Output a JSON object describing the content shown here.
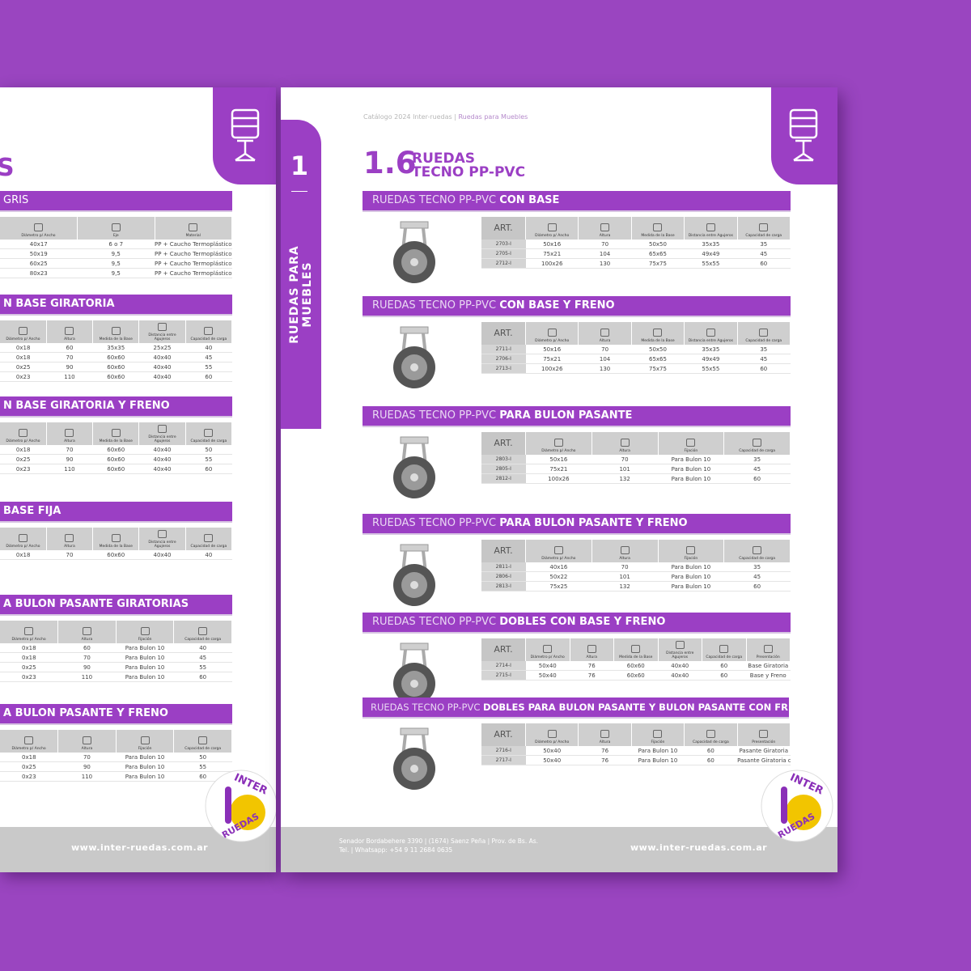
{
  "header": {
    "catalog": "Catálogo 2024 Inter-ruedas",
    "section": "Ruedas para Muebles"
  },
  "chapter": {
    "number": "1",
    "label": "RUEDAS PARA MUEBLES"
  },
  "title": {
    "number": "1.6",
    "line1": "RUEDAS",
    "line2": "TECNO PP-PVC"
  },
  "left_page": {
    "title_fragment": "S",
    "sections": [
      {
        "title": "GRIS",
        "columns": [
          "Diámetro p/ Ancho",
          "Eje",
          "Material"
        ],
        "rows": [
          [
            "40x17",
            "6 o 7",
            "PP + Caucho Termoplástico"
          ],
          [
            "50x19",
            "9,5",
            "PP + Caucho Termoplástico"
          ],
          [
            "60x25",
            "9,5",
            "PP + Caucho Termoplástico"
          ],
          [
            "80x23",
            "9,5",
            "PP + Caucho Termoplástico"
          ]
        ]
      },
      {
        "title": "N BASE GIRATORIA",
        "columns": [
          "Diámetro p/ Ancho",
          "Altura",
          "Medida de la Base",
          "Distancia entre Agujeros",
          "Capacidad de carga"
        ],
        "rows": [
          [
            "0x18",
            "60",
            "35x35",
            "25x25",
            "40"
          ],
          [
            "0x18",
            "70",
            "60x60",
            "40x40",
            "45"
          ],
          [
            "0x25",
            "90",
            "60x60",
            "40x40",
            "55"
          ],
          [
            "0x23",
            "110",
            "60x60",
            "40x40",
            "60"
          ]
        ]
      },
      {
        "title": "N BASE GIRATORIA Y FRENO",
        "columns": [
          "Diámetro p/ Ancho",
          "Altura",
          "Medida de la Base",
          "Distancia entre Agujeros",
          "Capacidad de carga"
        ],
        "rows": [
          [
            "0x18",
            "70",
            "60x60",
            "40x40",
            "50"
          ],
          [
            "0x25",
            "90",
            "60x60",
            "40x40",
            "55"
          ],
          [
            "0x23",
            "110",
            "60x60",
            "40x40",
            "60"
          ]
        ]
      },
      {
        "title": "BASE FIJA",
        "columns": [
          "Diámetro p/ Ancho",
          "Altura",
          "Medida de la Base",
          "Distancia entre Agujeros",
          "Capacidad de carga"
        ],
        "rows": [
          [
            "0x18",
            "70",
            "60x60",
            "40x40",
            "40"
          ]
        ]
      },
      {
        "title": "A BULON PASANTE GIRATORIAS",
        "columns": [
          "Diámetro p/ Ancho",
          "Altura",
          "Fijación",
          "Capacidad de carga"
        ],
        "rows": [
          [
            "0x18",
            "60",
            "Para Bulon 10",
            "40"
          ],
          [
            "0x18",
            "70",
            "Para Bulon 10",
            "45"
          ],
          [
            "0x25",
            "90",
            "Para Bulon 10",
            "55"
          ],
          [
            "0x23",
            "110",
            "Para Bulon 10",
            "60"
          ]
        ]
      },
      {
        "title": "A BULON PASANTE Y FRENO",
        "columns": [
          "Diámetro p/ Ancho",
          "Altura",
          "Fijación",
          "Capacidad de carga"
        ],
        "rows": [
          [
            "0x18",
            "70",
            "Para Bulon 10",
            "50"
          ],
          [
            "0x25",
            "90",
            "Para Bulon 10",
            "55"
          ],
          [
            "0x23",
            "110",
            "Para Bulon 10",
            "60"
          ]
        ]
      }
    ]
  },
  "sections": [
    {
      "title_prefix": "RUEDAS TECNO PP-PVC",
      "title_bold": "CON BASE",
      "columns": [
        "ART.",
        "Diámetro p/ Ancho",
        "Altura",
        "Medida de la Base",
        "Distancia entre Agujeros",
        "Capacidad de carga"
      ],
      "rows": [
        [
          "2703-I",
          "50x16",
          "70",
          "50x50",
          "35x35",
          "35"
        ],
        [
          "2705-I",
          "75x21",
          "104",
          "65x65",
          "49x49",
          "45"
        ],
        [
          "2712-I",
          "100x26",
          "130",
          "75x75",
          "55x55",
          "60"
        ]
      ]
    },
    {
      "title_prefix": "RUEDAS TECNO PP-PVC",
      "title_bold": "CON BASE Y FRENO",
      "columns": [
        "ART.",
        "Diámetro p/ Ancho",
        "Altura",
        "Medida de la Base",
        "Distancia entre Agujeros",
        "Capacidad de carga"
      ],
      "rows": [
        [
          "2711-I",
          "50x16",
          "70",
          "50x50",
          "35x35",
          "35"
        ],
        [
          "2706-I",
          "75x21",
          "104",
          "65x65",
          "49x49",
          "45"
        ],
        [
          "2713-I",
          "100x26",
          "130",
          "75x75",
          "55x55",
          "60"
        ]
      ]
    },
    {
      "title_prefix": "RUEDAS TECNO PP-PVC",
      "title_bold": "PARA BULON PASANTE",
      "columns": [
        "ART.",
        "Diámetro p/ Ancho",
        "Altura",
        "Fijación",
        "Capacidad de carga"
      ],
      "rows": [
        [
          "2803-I",
          "50x16",
          "70",
          "Para Bulon 10",
          "35"
        ],
        [
          "2805-I",
          "75x21",
          "101",
          "Para Bulon 10",
          "45"
        ],
        [
          "2812-I",
          "100x26",
          "132",
          "Para Bulon 10",
          "60"
        ]
      ]
    },
    {
      "title_prefix": "RUEDAS TECNO PP-PVC",
      "title_bold": "PARA BULON PASANTE Y FRENO",
      "columns": [
        "ART.",
        "Diámetro p/ Ancho",
        "Altura",
        "Fijación",
        "Capacidad de carga"
      ],
      "rows": [
        [
          "2811-I",
          "40x16",
          "70",
          "Para Bulon 10",
          "35"
        ],
        [
          "2806-I",
          "50x22",
          "101",
          "Para Bulon 10",
          "45"
        ],
        [
          "2813-I",
          "75x25",
          "132",
          "Para Bulon 10",
          "60"
        ]
      ]
    },
    {
      "title_prefix": "RUEDAS TECNO PP-PVC",
      "title_bold": "DOBLES CON BASE Y FRENO",
      "columns": [
        "ART.",
        "Diámetro p/ Ancho",
        "Altura",
        "Medida de la Base",
        "Distancia entre Agujeros",
        "Capacidad de carga",
        "Presentación"
      ],
      "rows": [
        [
          "2714-I",
          "50x40",
          "76",
          "60x60",
          "40x40",
          "60",
          "Base Giratoria"
        ],
        [
          "2715-I",
          "50x40",
          "76",
          "60x60",
          "40x40",
          "60",
          "Base y Freno"
        ]
      ]
    },
    {
      "title_prefix": "RUEDAS TECNO PP-PVC",
      "title_bold": "DOBLES PARA BULON PASANTE Y BULON PASANTE CON FRENO",
      "columns": [
        "ART.",
        "Diámetro p/ Ancho",
        "Altura",
        "Fijación",
        "Capacidad de carga",
        "Presentación"
      ],
      "rows": [
        [
          "2716-I",
          "50x40",
          "76",
          "Para Bulon 10",
          "60",
          "Pasante Giratoria"
        ],
        [
          "2717-I",
          "50x40",
          "76",
          "Para Bulon 10",
          "60",
          "Pasante Giratoria c/ freno"
        ]
      ]
    }
  ],
  "footer": {
    "website": "www.inter-ruedas.com.ar",
    "address": "Senador Bordabehere 3390 | (1674) Saenz Peña | Prov. de Bs. As.",
    "phone": "Tel. | Whatsapp: +54 9 11 2684 0635"
  },
  "logo": {
    "top": "INTER",
    "bottom": "RUEDAS"
  }
}
